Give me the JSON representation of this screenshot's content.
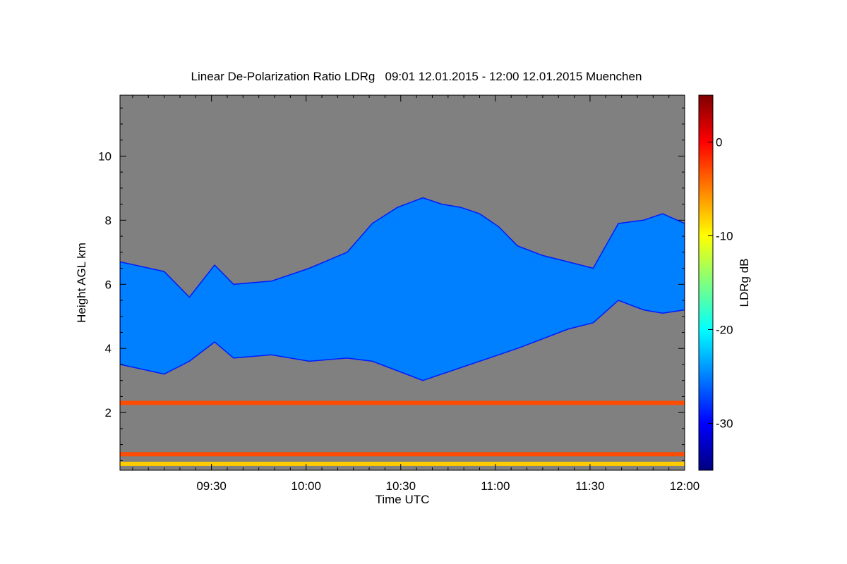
{
  "chart_data": {
    "type": "heatmap",
    "title": "Linear De-Polarization Ratio LDRg   09:01 12.01.2015 - 12:00 12.01.2015 Muenchen",
    "xlabel": "Time UTC",
    "ylabel": "Height AGL km",
    "colorbar_label": "LDRg dB",
    "x_ticks": [
      "09:30",
      "10:00",
      "10:30",
      "11:00",
      "11:30",
      "12:00"
    ],
    "y_ticks": [
      "2",
      "4",
      "6",
      "8",
      "10"
    ],
    "colorbar_ticks": [
      "0",
      "-10",
      "-20",
      "-30"
    ],
    "xlim": [
      "09:01",
      "12:00"
    ],
    "ylim": [
      0.2,
      11.9
    ],
    "clim": [
      -35,
      5
    ],
    "background_color": "#808080",
    "colormap": "jet",
    "series": [
      {
        "kind": "cloud_layer",
        "x_minutes_since_0901": [
          0,
          14,
          22,
          30,
          36,
          48,
          60,
          72,
          80,
          88,
          96,
          102,
          108,
          114,
          120,
          126,
          134,
          142,
          150,
          158,
          166,
          172,
          179
        ],
        "top_km": [
          6.7,
          6.4,
          5.6,
          6.6,
          6.0,
          6.1,
          6.5,
          7.0,
          7.9,
          8.4,
          8.7,
          8.5,
          8.4,
          8.2,
          7.8,
          7.2,
          6.9,
          6.7,
          6.5,
          7.9,
          8.0,
          8.2,
          7.9
        ],
        "base_km": [
          3.5,
          3.2,
          3.6,
          4.2,
          3.7,
          3.8,
          3.6,
          3.7,
          3.6,
          3.3,
          3.0,
          3.2,
          3.4,
          3.6,
          3.8,
          4.0,
          4.3,
          4.6,
          4.8,
          5.5,
          5.2,
          5.1,
          5.2
        ],
        "ldr_db": -25
      },
      {
        "kind": "noise_band",
        "height_km": 2.3,
        "ldr_db": -3
      },
      {
        "kind": "noise_band",
        "height_km": 0.7,
        "ldr_db": -3
      },
      {
        "kind": "noise_band",
        "height_km": 0.4,
        "ldr_db": -8
      }
    ]
  }
}
